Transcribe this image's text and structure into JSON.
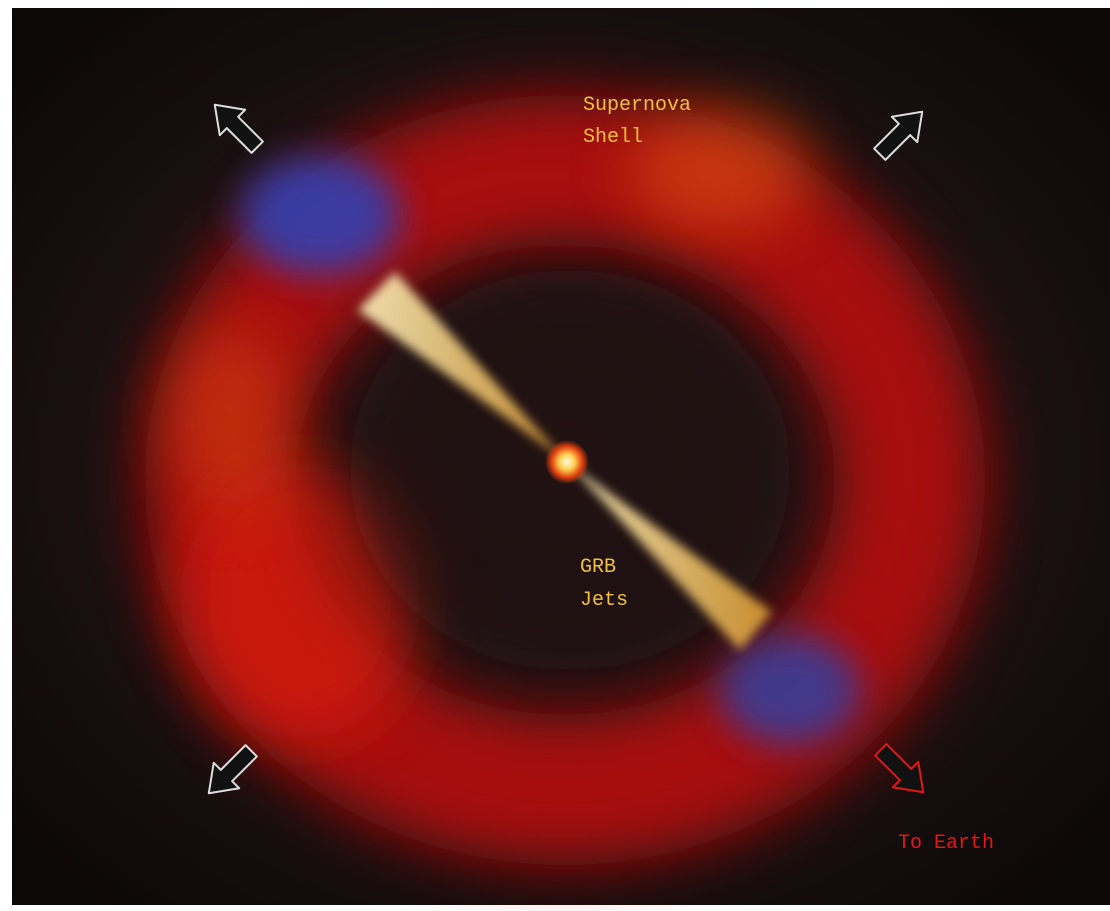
{
  "labels": [
    {
      "lines": [
        "Supernova",
        "Shell"
      ]
    },
    {
      "lines": [
        "GRB",
        "Jets"
      ]
    },
    {
      "lines": [
        "To Earth"
      ]
    }
  ]
}
